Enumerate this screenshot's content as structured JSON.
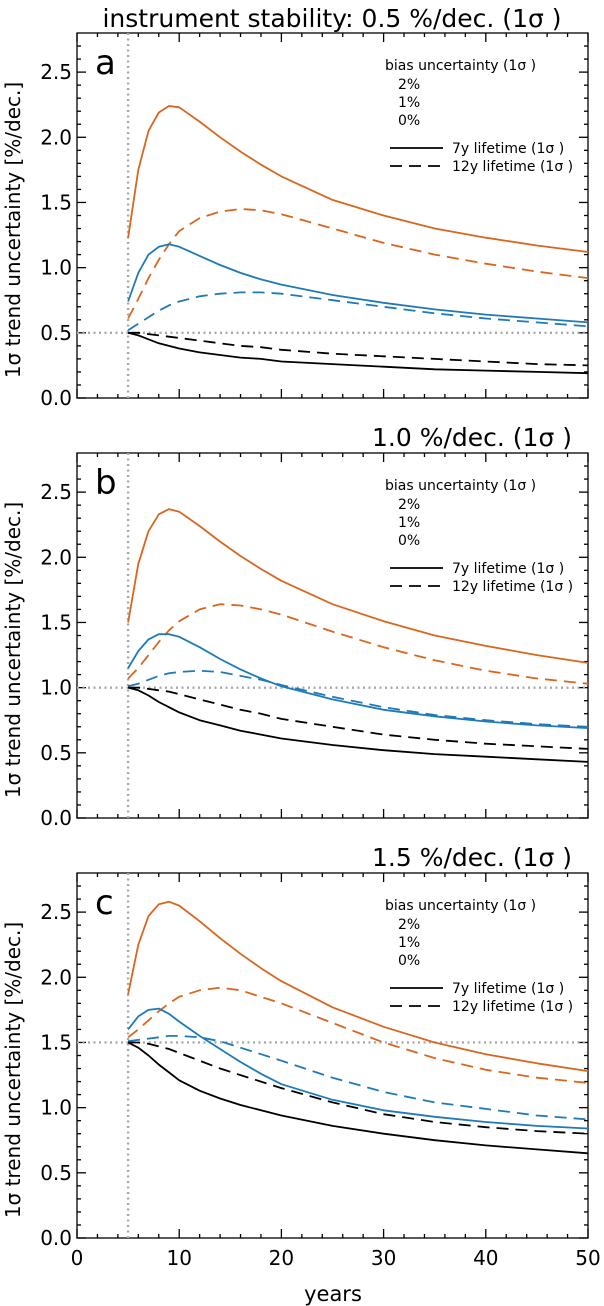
{
  "figure": {
    "xlabel": "years",
    "ylabel": "1σ  trend uncertainty [%/dec.]",
    "legend_bias_title": "bias uncertainty (1σ )",
    "legend_bias_entries": [
      "2%",
      "1%",
      "0%"
    ],
    "legend_lifetime_entries": [
      "7y lifetime (1σ )",
      "12y lifetime (1σ )"
    ]
  },
  "colors": {
    "bias_2pct": "#d9661f",
    "bias_1pct": "#1f7ab8",
    "bias_0pct": "#000000",
    "reference": "#a8a8a8"
  },
  "chart_data": [
    {
      "type": "line",
      "panel_label": "a",
      "title": "instrument stability: 0.5 %/dec. (1σ )",
      "xlabel": "",
      "ylabel": "1σ  trend uncertainty [%/dec.]",
      "xlim": [
        0,
        50
      ],
      "ylim": [
        0,
        2.8
      ],
      "xticks": [
        0,
        10,
        20,
        30,
        40,
        50
      ],
      "xtick_labels": [
        "",
        "",
        "",
        "",
        "",
        ""
      ],
      "yticks": [
        0.0,
        0.5,
        1.0,
        1.5,
        2.0,
        2.5
      ],
      "ytick_labels": [
        "0.0",
        "0.5",
        "1.0",
        "1.5",
        "2.0",
        "2.5"
      ],
      "vline_x": 5,
      "hline_y": 0.5,
      "x": [
        5,
        6,
        7,
        8,
        9,
        10,
        12,
        14,
        16,
        18,
        20,
        25,
        30,
        35,
        40,
        45,
        50
      ],
      "series": [
        {
          "name": "2%, 7y lifetime",
          "bias": "2%",
          "lifetime": "7y",
          "values": [
            1.23,
            1.75,
            2.05,
            2.19,
            2.24,
            2.23,
            2.12,
            2.0,
            1.89,
            1.79,
            1.7,
            1.52,
            1.4,
            1.3,
            1.23,
            1.17,
            1.12
          ]
        },
        {
          "name": "2%, 12y lifetime",
          "bias": "2%",
          "lifetime": "12y",
          "values": [
            0.61,
            0.76,
            0.92,
            1.06,
            1.18,
            1.28,
            1.38,
            1.43,
            1.45,
            1.44,
            1.41,
            1.3,
            1.19,
            1.1,
            1.03,
            0.97,
            0.92
          ]
        },
        {
          "name": "1%, 7y lifetime",
          "bias": "1%",
          "lifetime": "7y",
          "values": [
            0.74,
            0.96,
            1.1,
            1.16,
            1.18,
            1.16,
            1.09,
            1.02,
            0.96,
            0.91,
            0.87,
            0.79,
            0.73,
            0.68,
            0.64,
            0.61,
            0.58
          ]
        },
        {
          "name": "1%, 12y lifetime",
          "bias": "1%",
          "lifetime": "12y",
          "values": [
            0.52,
            0.57,
            0.62,
            0.67,
            0.71,
            0.74,
            0.78,
            0.8,
            0.81,
            0.81,
            0.8,
            0.75,
            0.7,
            0.65,
            0.61,
            0.58,
            0.55
          ]
        },
        {
          "name": "0%, 7y lifetime",
          "bias": "0%",
          "lifetime": "7y",
          "values": [
            0.5,
            0.48,
            0.45,
            0.42,
            0.4,
            0.38,
            0.35,
            0.33,
            0.31,
            0.3,
            0.28,
            0.26,
            0.24,
            0.22,
            0.21,
            0.2,
            0.19
          ]
        },
        {
          "name": "0%, 12y lifetime",
          "bias": "0%",
          "lifetime": "12y",
          "values": [
            0.5,
            0.5,
            0.49,
            0.48,
            0.47,
            0.46,
            0.44,
            0.42,
            0.4,
            0.39,
            0.37,
            0.34,
            0.32,
            0.3,
            0.28,
            0.26,
            0.25
          ]
        }
      ]
    },
    {
      "type": "line",
      "panel_label": "b",
      "title": "1.0 %/dec. (1σ )",
      "xlabel": "",
      "ylabel": "1σ  trend uncertainty [%/dec.]",
      "xlim": [
        0,
        50
      ],
      "ylim": [
        0,
        2.8
      ],
      "xticks": [
        0,
        10,
        20,
        30,
        40,
        50
      ],
      "xtick_labels": [
        "",
        "",
        "",
        "",
        "",
        ""
      ],
      "yticks": [
        0.0,
        0.5,
        1.0,
        1.5,
        2.0,
        2.5
      ],
      "ytick_labels": [
        "0.0",
        "0.5",
        "1.0",
        "1.5",
        "2.0",
        "2.5"
      ],
      "vline_x": 5,
      "hline_y": 1.0,
      "x": [
        5,
        6,
        7,
        8,
        9,
        10,
        12,
        14,
        16,
        18,
        20,
        25,
        30,
        35,
        40,
        45,
        50
      ],
      "series": [
        {
          "name": "2%, 7y lifetime",
          "bias": "2%",
          "lifetime": "7y",
          "values": [
            1.5,
            1.95,
            2.2,
            2.33,
            2.37,
            2.35,
            2.24,
            2.12,
            2.01,
            1.91,
            1.82,
            1.64,
            1.51,
            1.4,
            1.32,
            1.25,
            1.19
          ]
        },
        {
          "name": "2%, 12y lifetime",
          "bias": "2%",
          "lifetime": "12y",
          "values": [
            1.07,
            1.15,
            1.25,
            1.35,
            1.44,
            1.51,
            1.6,
            1.64,
            1.63,
            1.6,
            1.56,
            1.43,
            1.31,
            1.21,
            1.13,
            1.07,
            1.03
          ]
        },
        {
          "name": "1%, 7y lifetime",
          "bias": "1%",
          "lifetime": "7y",
          "values": [
            1.15,
            1.28,
            1.37,
            1.41,
            1.41,
            1.39,
            1.31,
            1.22,
            1.14,
            1.07,
            1.01,
            0.91,
            0.83,
            0.78,
            0.74,
            0.71,
            0.69
          ]
        },
        {
          "name": "1%, 12y lifetime",
          "bias": "1%",
          "lifetime": "12y",
          "values": [
            1.01,
            1.03,
            1.06,
            1.09,
            1.11,
            1.12,
            1.13,
            1.12,
            1.09,
            1.06,
            1.02,
            0.93,
            0.85,
            0.79,
            0.75,
            0.72,
            0.7
          ]
        },
        {
          "name": "0%, 7y lifetime",
          "bias": "0%",
          "lifetime": "7y",
          "values": [
            1.0,
            0.98,
            0.94,
            0.89,
            0.85,
            0.81,
            0.75,
            0.71,
            0.67,
            0.64,
            0.61,
            0.56,
            0.52,
            0.49,
            0.47,
            0.45,
            0.43
          ]
        },
        {
          "name": "0%, 12y lifetime",
          "bias": "0%",
          "lifetime": "12y",
          "values": [
            1.0,
            1.0,
            0.99,
            0.98,
            0.97,
            0.95,
            0.91,
            0.87,
            0.83,
            0.8,
            0.76,
            0.7,
            0.64,
            0.6,
            0.57,
            0.55,
            0.53
          ]
        }
      ]
    },
    {
      "type": "line",
      "panel_label": "c",
      "title": "1.5 %/dec. (1σ )",
      "xlabel": "years",
      "ylabel": "1σ  trend uncertainty [%/dec.]",
      "xlim": [
        0,
        50
      ],
      "ylim": [
        0,
        2.8
      ],
      "xticks": [
        0,
        10,
        20,
        30,
        40,
        50
      ],
      "xtick_labels": [
        "0",
        "10",
        "20",
        "30",
        "40",
        "50"
      ],
      "yticks": [
        0.0,
        0.5,
        1.0,
        1.5,
        2.0,
        2.5
      ],
      "ytick_labels": [
        "0.0",
        "0.5",
        "1.0",
        "1.5",
        "2.0",
        "2.5"
      ],
      "vline_x": 5,
      "hline_y": 1.5,
      "x": [
        5,
        6,
        7,
        8,
        9,
        10,
        12,
        14,
        16,
        18,
        20,
        25,
        30,
        35,
        40,
        45,
        50
      ],
      "series": [
        {
          "name": "2%, 7y lifetime",
          "bias": "2%",
          "lifetime": "7y",
          "values": [
            1.87,
            2.25,
            2.47,
            2.56,
            2.58,
            2.55,
            2.43,
            2.3,
            2.18,
            2.07,
            1.97,
            1.77,
            1.62,
            1.5,
            1.41,
            1.34,
            1.28
          ]
        },
        {
          "name": "2%, 12y lifetime",
          "bias": "2%",
          "lifetime": "12y",
          "values": [
            1.54,
            1.6,
            1.67,
            1.74,
            1.8,
            1.85,
            1.9,
            1.92,
            1.9,
            1.85,
            1.8,
            1.65,
            1.5,
            1.38,
            1.29,
            1.23,
            1.19
          ]
        },
        {
          "name": "1%, 7y lifetime",
          "bias": "1%",
          "lifetime": "7y",
          "values": [
            1.6,
            1.7,
            1.75,
            1.76,
            1.72,
            1.66,
            1.55,
            1.45,
            1.35,
            1.26,
            1.18,
            1.06,
            0.98,
            0.93,
            0.89,
            0.86,
            0.84
          ]
        },
        {
          "name": "1%, 12y lifetime",
          "bias": "1%",
          "lifetime": "12y",
          "values": [
            1.51,
            1.52,
            1.53,
            1.54,
            1.55,
            1.55,
            1.54,
            1.51,
            1.46,
            1.41,
            1.36,
            1.23,
            1.12,
            1.04,
            0.99,
            0.94,
            0.91
          ]
        },
        {
          "name": "0%, 7y lifetime",
          "bias": "0%",
          "lifetime": "7y",
          "values": [
            1.5,
            1.46,
            1.4,
            1.33,
            1.27,
            1.21,
            1.13,
            1.07,
            1.02,
            0.98,
            0.94,
            0.86,
            0.8,
            0.75,
            0.71,
            0.68,
            0.65
          ]
        },
        {
          "name": "0%, 12y lifetime",
          "bias": "0%",
          "lifetime": "12y",
          "values": [
            1.5,
            1.5,
            1.49,
            1.47,
            1.45,
            1.42,
            1.36,
            1.3,
            1.25,
            1.2,
            1.15,
            1.04,
            0.95,
            0.89,
            0.85,
            0.82,
            0.8
          ]
        }
      ]
    }
  ]
}
